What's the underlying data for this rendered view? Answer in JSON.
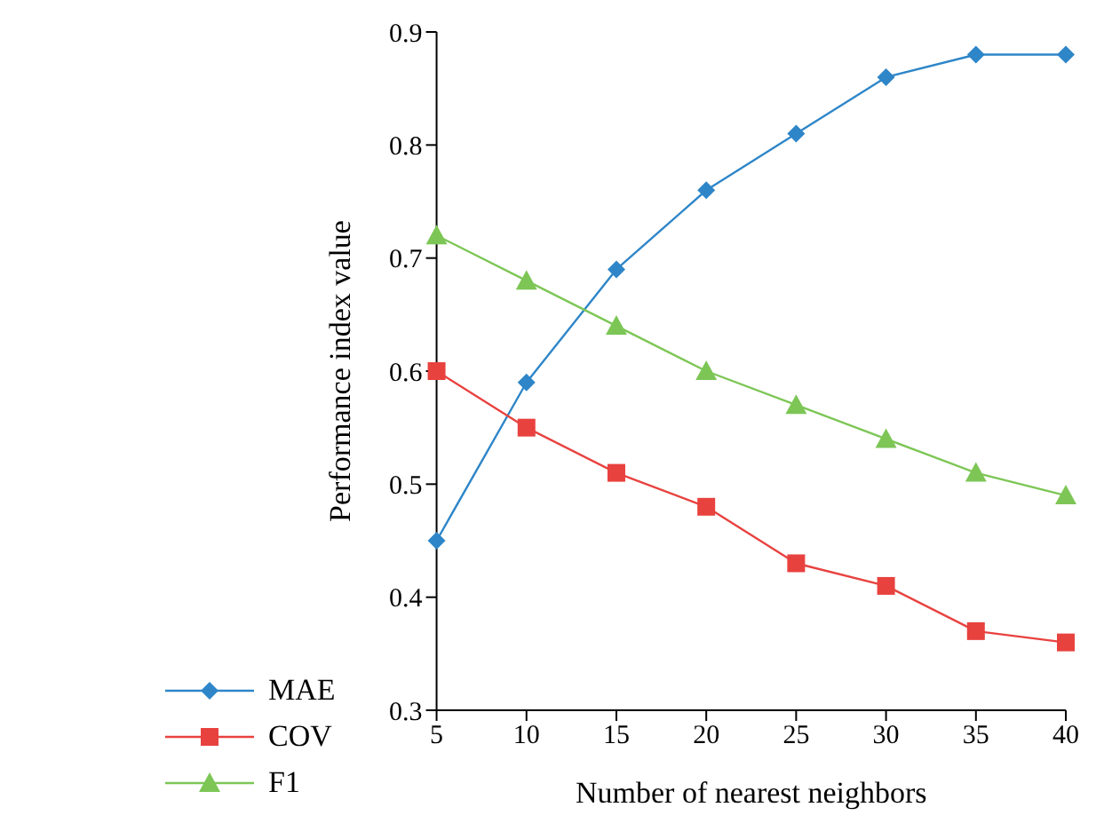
{
  "chart_data": {
    "type": "line",
    "xlabel": "Number of nearest neighbors",
    "ylabel": "Performance index value",
    "x": [
      5,
      10,
      15,
      20,
      25,
      30,
      35,
      40
    ],
    "series": [
      {
        "name": "MAE",
        "color": "#2e86c8",
        "marker": "diamond",
        "values": [
          0.45,
          0.59,
          0.69,
          0.76,
          0.81,
          0.86,
          0.88,
          0.88
        ]
      },
      {
        "name": "COV",
        "color": "#e8423f",
        "marker": "square",
        "values": [
          0.6,
          0.55,
          0.51,
          0.48,
          0.43,
          0.41,
          0.37,
          0.36
        ]
      },
      {
        "name": "F1",
        "color": "#7dc656",
        "marker": "triangle",
        "values": [
          0.72,
          0.68,
          0.64,
          0.6,
          0.57,
          0.54,
          0.51,
          0.49
        ]
      }
    ],
    "xlim": [
      5,
      40
    ],
    "xticks": [
      5,
      10,
      15,
      20,
      25,
      30,
      35,
      40
    ],
    "ylim": [
      0.3,
      0.9
    ],
    "yticks": [
      0.3,
      0.4,
      0.5,
      0.6,
      0.7,
      0.8,
      0.9
    ],
    "grid": false,
    "legend": "bottom left",
    "line_style": "solid"
  }
}
